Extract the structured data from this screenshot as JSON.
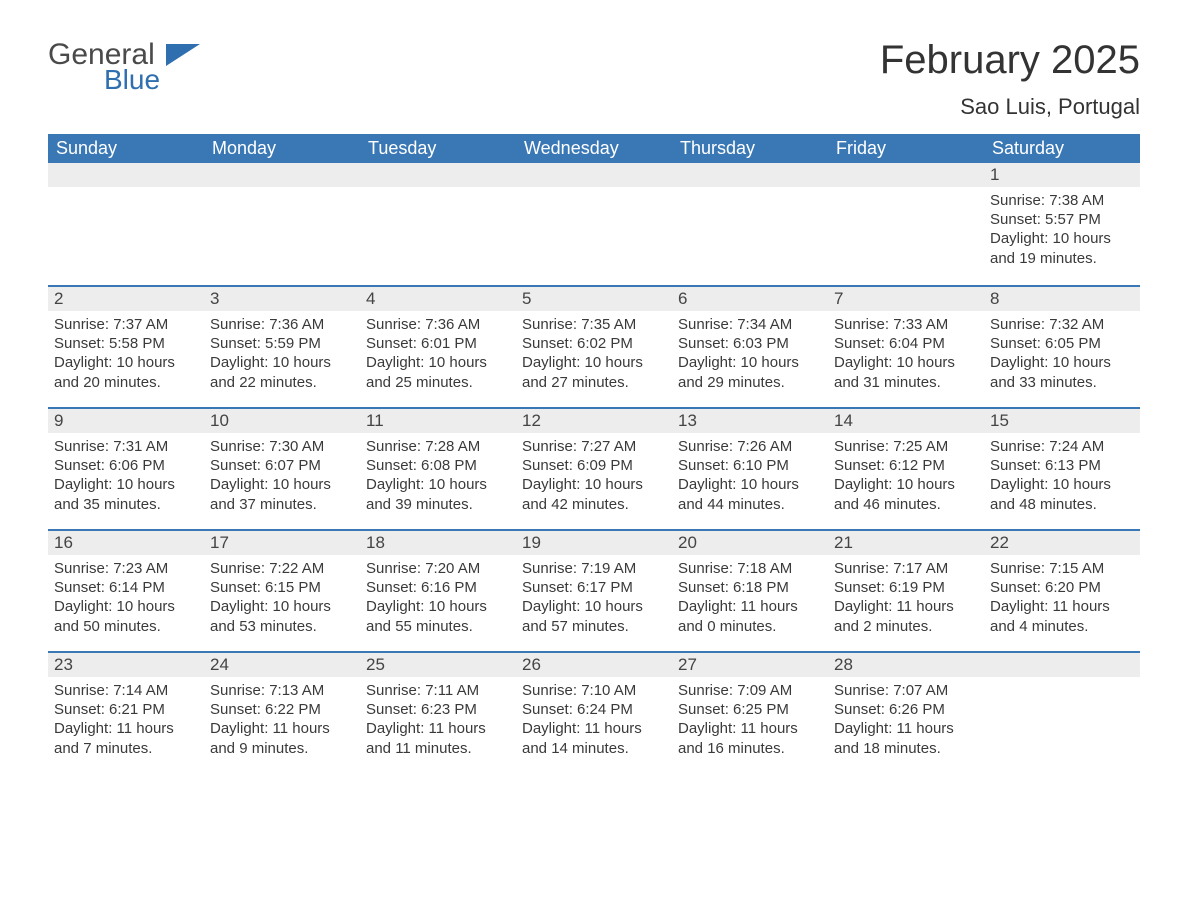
{
  "brand": {
    "word1": "General",
    "word2": "Blue"
  },
  "title": {
    "month": "February 2025",
    "location": "Sao Luis, Portugal"
  },
  "header_color": "#3a78b5",
  "row_divider_color": "#3a78b5",
  "daynum_bg": "#ededed",
  "text_color": "#3a3a3a",
  "days_of_week": [
    "Sunday",
    "Monday",
    "Tuesday",
    "Wednesday",
    "Thursday",
    "Friday",
    "Saturday"
  ],
  "weeks": [
    [
      {
        "empty": true
      },
      {
        "empty": true
      },
      {
        "empty": true
      },
      {
        "empty": true
      },
      {
        "empty": true
      },
      {
        "empty": true
      },
      {
        "n": "1",
        "sunrise": "Sunrise: 7:38 AM",
        "sunset": "Sunset: 5:57 PM",
        "daylight": "Daylight: 10 hours and 19 minutes."
      }
    ],
    [
      {
        "n": "2",
        "sunrise": "Sunrise: 7:37 AM",
        "sunset": "Sunset: 5:58 PM",
        "daylight": "Daylight: 10 hours and 20 minutes."
      },
      {
        "n": "3",
        "sunrise": "Sunrise: 7:36 AM",
        "sunset": "Sunset: 5:59 PM",
        "daylight": "Daylight: 10 hours and 22 minutes."
      },
      {
        "n": "4",
        "sunrise": "Sunrise: 7:36 AM",
        "sunset": "Sunset: 6:01 PM",
        "daylight": "Daylight: 10 hours and 25 minutes."
      },
      {
        "n": "5",
        "sunrise": "Sunrise: 7:35 AM",
        "sunset": "Sunset: 6:02 PM",
        "daylight": "Daylight: 10 hours and 27 minutes."
      },
      {
        "n": "6",
        "sunrise": "Sunrise: 7:34 AM",
        "sunset": "Sunset: 6:03 PM",
        "daylight": "Daylight: 10 hours and 29 minutes."
      },
      {
        "n": "7",
        "sunrise": "Sunrise: 7:33 AM",
        "sunset": "Sunset: 6:04 PM",
        "daylight": "Daylight: 10 hours and 31 minutes."
      },
      {
        "n": "8",
        "sunrise": "Sunrise: 7:32 AM",
        "sunset": "Sunset: 6:05 PM",
        "daylight": "Daylight: 10 hours and 33 minutes."
      }
    ],
    [
      {
        "n": "9",
        "sunrise": "Sunrise: 7:31 AM",
        "sunset": "Sunset: 6:06 PM",
        "daylight": "Daylight: 10 hours and 35 minutes."
      },
      {
        "n": "10",
        "sunrise": "Sunrise: 7:30 AM",
        "sunset": "Sunset: 6:07 PM",
        "daylight": "Daylight: 10 hours and 37 minutes."
      },
      {
        "n": "11",
        "sunrise": "Sunrise: 7:28 AM",
        "sunset": "Sunset: 6:08 PM",
        "daylight": "Daylight: 10 hours and 39 minutes."
      },
      {
        "n": "12",
        "sunrise": "Sunrise: 7:27 AM",
        "sunset": "Sunset: 6:09 PM",
        "daylight": "Daylight: 10 hours and 42 minutes."
      },
      {
        "n": "13",
        "sunrise": "Sunrise: 7:26 AM",
        "sunset": "Sunset: 6:10 PM",
        "daylight": "Daylight: 10 hours and 44 minutes."
      },
      {
        "n": "14",
        "sunrise": "Sunrise: 7:25 AM",
        "sunset": "Sunset: 6:12 PM",
        "daylight": "Daylight: 10 hours and 46 minutes."
      },
      {
        "n": "15",
        "sunrise": "Sunrise: 7:24 AM",
        "sunset": "Sunset: 6:13 PM",
        "daylight": "Daylight: 10 hours and 48 minutes."
      }
    ],
    [
      {
        "n": "16",
        "sunrise": "Sunrise: 7:23 AM",
        "sunset": "Sunset: 6:14 PM",
        "daylight": "Daylight: 10 hours and 50 minutes."
      },
      {
        "n": "17",
        "sunrise": "Sunrise: 7:22 AM",
        "sunset": "Sunset: 6:15 PM",
        "daylight": "Daylight: 10 hours and 53 minutes."
      },
      {
        "n": "18",
        "sunrise": "Sunrise: 7:20 AM",
        "sunset": "Sunset: 6:16 PM",
        "daylight": "Daylight: 10 hours and 55 minutes."
      },
      {
        "n": "19",
        "sunrise": "Sunrise: 7:19 AM",
        "sunset": "Sunset: 6:17 PM",
        "daylight": "Daylight: 10 hours and 57 minutes."
      },
      {
        "n": "20",
        "sunrise": "Sunrise: 7:18 AM",
        "sunset": "Sunset: 6:18 PM",
        "daylight": "Daylight: 11 hours and 0 minutes."
      },
      {
        "n": "21",
        "sunrise": "Sunrise: 7:17 AM",
        "sunset": "Sunset: 6:19 PM",
        "daylight": "Daylight: 11 hours and 2 minutes."
      },
      {
        "n": "22",
        "sunrise": "Sunrise: 7:15 AM",
        "sunset": "Sunset: 6:20 PM",
        "daylight": "Daylight: 11 hours and 4 minutes."
      }
    ],
    [
      {
        "n": "23",
        "sunrise": "Sunrise: 7:14 AM",
        "sunset": "Sunset: 6:21 PM",
        "daylight": "Daylight: 11 hours and 7 minutes."
      },
      {
        "n": "24",
        "sunrise": "Sunrise: 7:13 AM",
        "sunset": "Sunset: 6:22 PM",
        "daylight": "Daylight: 11 hours and 9 minutes."
      },
      {
        "n": "25",
        "sunrise": "Sunrise: 7:11 AM",
        "sunset": "Sunset: 6:23 PM",
        "daylight": "Daylight: 11 hours and 11 minutes."
      },
      {
        "n": "26",
        "sunrise": "Sunrise: 7:10 AM",
        "sunset": "Sunset: 6:24 PM",
        "daylight": "Daylight: 11 hours and 14 minutes."
      },
      {
        "n": "27",
        "sunrise": "Sunrise: 7:09 AM",
        "sunset": "Sunset: 6:25 PM",
        "daylight": "Daylight: 11 hours and 16 minutes."
      },
      {
        "n": "28",
        "sunrise": "Sunrise: 7:07 AM",
        "sunset": "Sunset: 6:26 PM",
        "daylight": "Daylight: 11 hours and 18 minutes."
      },
      {
        "empty": true
      }
    ]
  ]
}
